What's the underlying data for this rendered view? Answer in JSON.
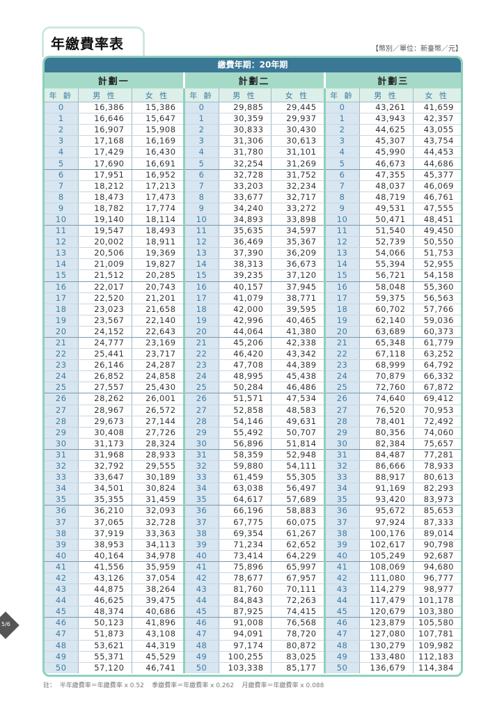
{
  "title": "年繳費率表",
  "unit_note": "【幣別／單位：新臺幣／元】",
  "period_label": "繳費年期：20年期",
  "plans": [
    "計劃一",
    "計劃二",
    "計劃三"
  ],
  "col_headers": {
    "age": "年 齡",
    "male": "男 性",
    "female": "女 性"
  },
  "rows": [
    [
      "0",
      "16,386",
      "15,386",
      "29,885",
      "29,445",
      "43,261",
      "41,659"
    ],
    [
      "1",
      "16,646",
      "15,647",
      "30,359",
      "29,937",
      "43,943",
      "42,357"
    ],
    [
      "2",
      "16,907",
      "15,908",
      "30,833",
      "30,430",
      "44,625",
      "43,055"
    ],
    [
      "3",
      "17,168",
      "16,169",
      "31,306",
      "30,613",
      "45,307",
      "43,754"
    ],
    [
      "4",
      "17,429",
      "16,430",
      "31,780",
      "31,101",
      "45,990",
      "44,453"
    ],
    [
      "5",
      "17,690",
      "16,691",
      "32,254",
      "31,269",
      "46,673",
      "44,686"
    ],
    [
      "6",
      "17,951",
      "16,952",
      "32,728",
      "31,752",
      "47,355",
      "45,377"
    ],
    [
      "7",
      "18,212",
      "17,213",
      "33,203",
      "32,234",
      "48,037",
      "46,069"
    ],
    [
      "8",
      "18,473",
      "17,473",
      "33,677",
      "32,717",
      "48,719",
      "46,761"
    ],
    [
      "9",
      "18,782",
      "17,774",
      "34,240",
      "33,272",
      "49,531",
      "47,555"
    ],
    [
      "10",
      "19,140",
      "18,114",
      "34,893",
      "33,898",
      "50,471",
      "48,451"
    ],
    [
      "11",
      "19,547",
      "18,493",
      "35,635",
      "34,597",
      "51,540",
      "49,450"
    ],
    [
      "12",
      "20,002",
      "18,911",
      "36,469",
      "35,367",
      "52,739",
      "50,550"
    ],
    [
      "13",
      "20,506",
      "19,369",
      "37,390",
      "36,209",
      "54,066",
      "51,753"
    ],
    [
      "14",
      "21,009",
      "19,827",
      "38,313",
      "36,673",
      "55,394",
      "52,955"
    ],
    [
      "15",
      "21,512",
      "20,285",
      "39,235",
      "37,120",
      "56,721",
      "54,158"
    ],
    [
      "16",
      "22,017",
      "20,743",
      "40,157",
      "37,945",
      "58,048",
      "55,360"
    ],
    [
      "17",
      "22,520",
      "21,201",
      "41,079",
      "38,771",
      "59,375",
      "56,563"
    ],
    [
      "18",
      "23,023",
      "21,658",
      "42,000",
      "39,595",
      "60,702",
      "57,766"
    ],
    [
      "19",
      "23,567",
      "22,140",
      "42,996",
      "40,465",
      "62,140",
      "59,036"
    ],
    [
      "20",
      "24,152",
      "22,643",
      "44,064",
      "41,380",
      "63,689",
      "60,373"
    ],
    [
      "21",
      "24,777",
      "23,169",
      "45,206",
      "42,338",
      "65,348",
      "61,779"
    ],
    [
      "22",
      "25,441",
      "23,717",
      "46,420",
      "43,342",
      "67,118",
      "63,252"
    ],
    [
      "23",
      "26,146",
      "24,287",
      "47,708",
      "44,389",
      "68,999",
      "64,792"
    ],
    [
      "24",
      "26,852",
      "24,858",
      "48,995",
      "45,438",
      "70,879",
      "66,332"
    ],
    [
      "25",
      "27,557",
      "25,430",
      "50,284",
      "46,486",
      "72,760",
      "67,872"
    ],
    [
      "26",
      "28,262",
      "26,001",
      "51,571",
      "47,534",
      "74,640",
      "69,412"
    ],
    [
      "27",
      "28,967",
      "26,572",
      "52,858",
      "48,583",
      "76,520",
      "70,953"
    ],
    [
      "28",
      "29,673",
      "27,144",
      "54,146",
      "49,631",
      "78,401",
      "72,492"
    ],
    [
      "29",
      "30,408",
      "27,726",
      "55,492",
      "50,707",
      "80,356",
      "74,060"
    ],
    [
      "30",
      "31,173",
      "28,324",
      "56,896",
      "51,814",
      "82,384",
      "75,657"
    ],
    [
      "31",
      "31,968",
      "28,933",
      "58,359",
      "52,948",
      "84,487",
      "77,281"
    ],
    [
      "32",
      "32,792",
      "29,555",
      "59,880",
      "54,111",
      "86,666",
      "78,933"
    ],
    [
      "33",
      "33,647",
      "30,189",
      "61,459",
      "55,305",
      "88,917",
      "80,613"
    ],
    [
      "34",
      "34,501",
      "30,824",
      "63,038",
      "56,497",
      "91,169",
      "82,293"
    ],
    [
      "35",
      "35,355",
      "31,459",
      "64,617",
      "57,689",
      "93,420",
      "83,973"
    ],
    [
      "36",
      "36,210",
      "32,093",
      "66,196",
      "58,883",
      "95,672",
      "85,653"
    ],
    [
      "37",
      "37,065",
      "32,728",
      "67,775",
      "60,075",
      "97,924",
      "87,333"
    ],
    [
      "38",
      "37,919",
      "33,363",
      "69,354",
      "61,267",
      "100,176",
      "89,014"
    ],
    [
      "39",
      "38,953",
      "34,113",
      "71,234",
      "62,652",
      "102,617",
      "90,798"
    ],
    [
      "40",
      "40,164",
      "34,978",
      "73,414",
      "64,229",
      "105,249",
      "92,687"
    ],
    [
      "41",
      "41,556",
      "35,959",
      "75,896",
      "65,997",
      "108,069",
      "94,680"
    ],
    [
      "42",
      "43,126",
      "37,054",
      "78,677",
      "67,957",
      "111,080",
      "96,777"
    ],
    [
      "43",
      "44,875",
      "38,264",
      "81,760",
      "70,111",
      "114,279",
      "98,977"
    ],
    [
      "44",
      "46,625",
      "39,475",
      "84,843",
      "72,263",
      "117,479",
      "101,178"
    ],
    [
      "45",
      "48,374",
      "40,686",
      "87,925",
      "74,415",
      "120,679",
      "103,380"
    ],
    [
      "46",
      "50,123",
      "41,896",
      "91,008",
      "76,568",
      "123,879",
      "105,580"
    ],
    [
      "47",
      "51,873",
      "43,108",
      "94,091",
      "78,720",
      "127,080",
      "107,781"
    ],
    [
      "48",
      "53,621",
      "44,319",
      "97,174",
      "80,872",
      "130,279",
      "109,982"
    ],
    [
      "49",
      "55,371",
      "45,529",
      "100,255",
      "83,025",
      "133,480",
      "112,183"
    ],
    [
      "50",
      "57,120",
      "46,741",
      "103,338",
      "85,177",
      "136,679",
      "114,384"
    ]
  ],
  "footnote": "註：  半年繳費率＝年繳費率 x 0.52    季繳費率＝年繳費率 x 0.262    月繳費率＝年繳費率 x 0.088",
  "page_indicator": "5/6",
  "colors": {
    "header": "#3b7896",
    "border": "#8fd0bb",
    "plan_bg": "#a6dac8",
    "age_bg": "#d7e6f1",
    "age_text": "#3d7ba0"
  }
}
